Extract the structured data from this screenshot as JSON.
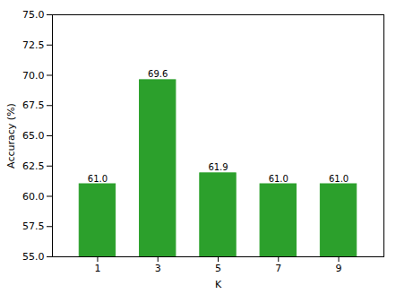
{
  "chart_data": {
    "type": "bar",
    "categories": [
      1,
      3,
      5,
      7,
      9
    ],
    "values": [
      61.0,
      69.6,
      61.9,
      61.0,
      61.0
    ],
    "value_labels": [
      "61.0",
      "69.6",
      "61.9",
      "61.0",
      "61.0"
    ],
    "data_labels": true,
    "color": "#2ca02c",
    "xlabel": "K",
    "ylabel": "Accuracy (%)",
    "xlim": [
      -0.5,
      10.5
    ],
    "xticks": [
      1,
      3,
      5,
      7,
      9
    ],
    "ylim": [
      55.0,
      75.0
    ],
    "yticks": [
      {
        "value": 55.0,
        "label": "55.0"
      },
      57.5,
      {
        "value": 60.0,
        "label": "60.0"
      },
      62.5,
      {
        "value": 65.0,
        "label": "65.0"
      },
      67.5,
      {
        "value": 70.0,
        "label": "70.0"
      },
      72.5,
      {
        "value": 75.0,
        "label": "75.0"
      }
    ],
    "grid": false
  }
}
